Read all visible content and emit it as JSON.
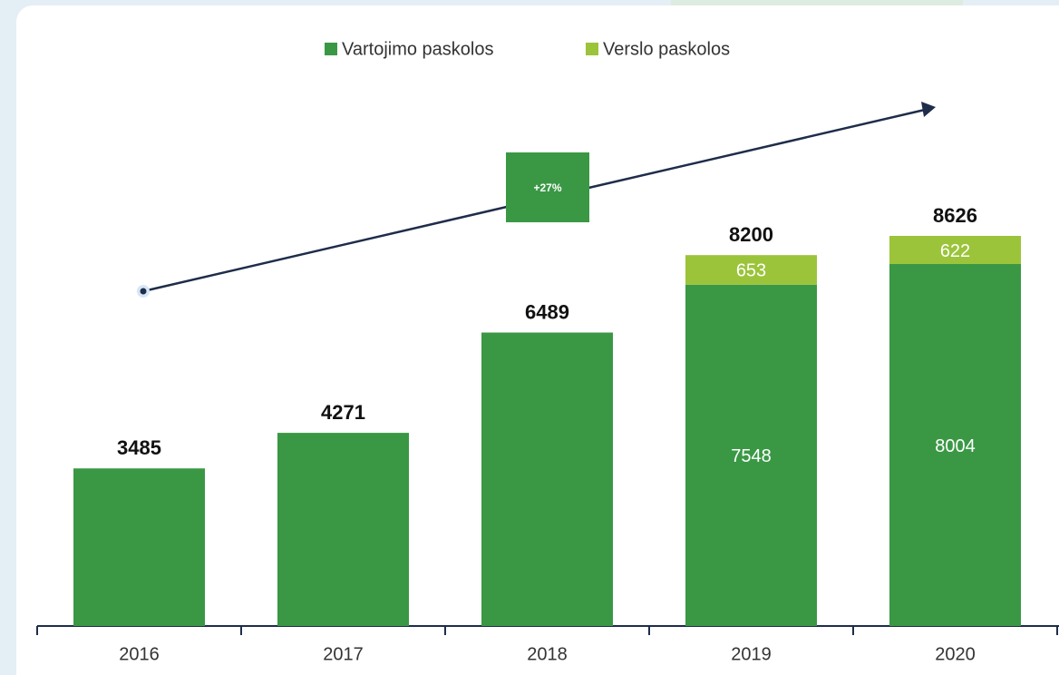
{
  "chart_data": {
    "type": "stacked_bar",
    "categories": [
      "2016",
      "2017",
      "2018",
      "2019",
      "2020"
    ],
    "series": [
      {
        "name": "Vartojimo paskolos",
        "color": "#3a9845",
        "values": [
          3485,
          4271,
          6489,
          7548,
          8004
        ]
      },
      {
        "name": "Verslo paskolos",
        "color": "#9bc43a",
        "values": [
          null,
          null,
          null,
          653,
          622
        ]
      }
    ],
    "totals": [
      3485,
      4271,
      6489,
      8200,
      8626
    ],
    "annotation": "+27%"
  }
}
